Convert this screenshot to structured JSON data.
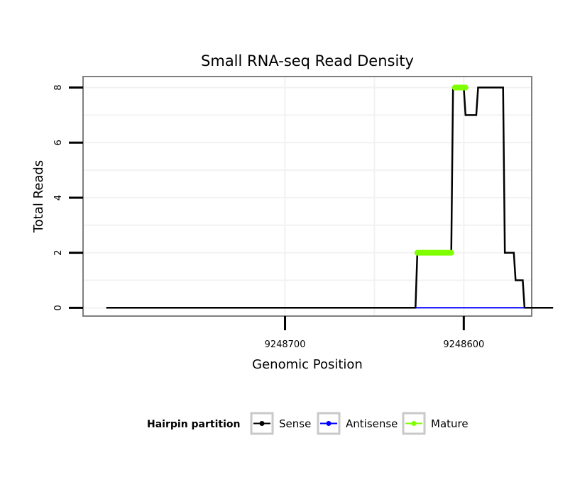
{
  "chart_data": {
    "type": "line",
    "title": "Small RNA-seq Read Density",
    "xlabel": "Genomic Position",
    "ylabel": "Total Reads",
    "xlim": [
      9248813,
      9248562
    ],
    "ylim": [
      -0.3,
      8.4
    ],
    "x_ticks": [
      9248700,
      9248600
    ],
    "x_tick_labels": [
      "9248700",
      "9248600"
    ],
    "y_ticks": [
      0,
      2,
      4,
      6,
      8
    ],
    "y_tick_labels": [
      "0",
      "2",
      "4",
      "6",
      "8"
    ],
    "grid": true,
    "legend_title": "Hairpin partition",
    "legend_position": "bottom",
    "series": [
      {
        "name": "Sense",
        "color": "#000000",
        "points": [
          [
            9248800,
            0
          ],
          [
            9248627,
            0
          ],
          [
            9248626,
            2
          ],
          [
            9248620,
            2
          ],
          [
            9248607,
            2
          ],
          [
            9248606,
            8
          ],
          [
            9248600,
            8
          ],
          [
            9248599,
            7
          ],
          [
            9248593,
            7
          ],
          [
            9248592,
            8
          ],
          [
            9248585,
            8
          ],
          [
            9248578,
            8
          ],
          [
            9248577,
            2
          ],
          [
            9248572,
            2
          ],
          [
            9248571,
            1
          ],
          [
            9248567,
            1
          ],
          [
            9248566,
            0
          ],
          [
            9248550,
            0
          ]
        ]
      },
      {
        "name": "Antisense",
        "color": "#0000ff",
        "points": [
          [
            9248627,
            0
          ],
          [
            9248566,
            0
          ]
        ]
      },
      {
        "name": "Mature",
        "color": "#7fff00",
        "segments": [
          [
            [
              9248626,
              2
            ],
            [
              9248607,
              2
            ]
          ],
          [
            [
              9248605,
              8
            ],
            [
              9248599,
              8
            ]
          ]
        ]
      }
    ]
  }
}
